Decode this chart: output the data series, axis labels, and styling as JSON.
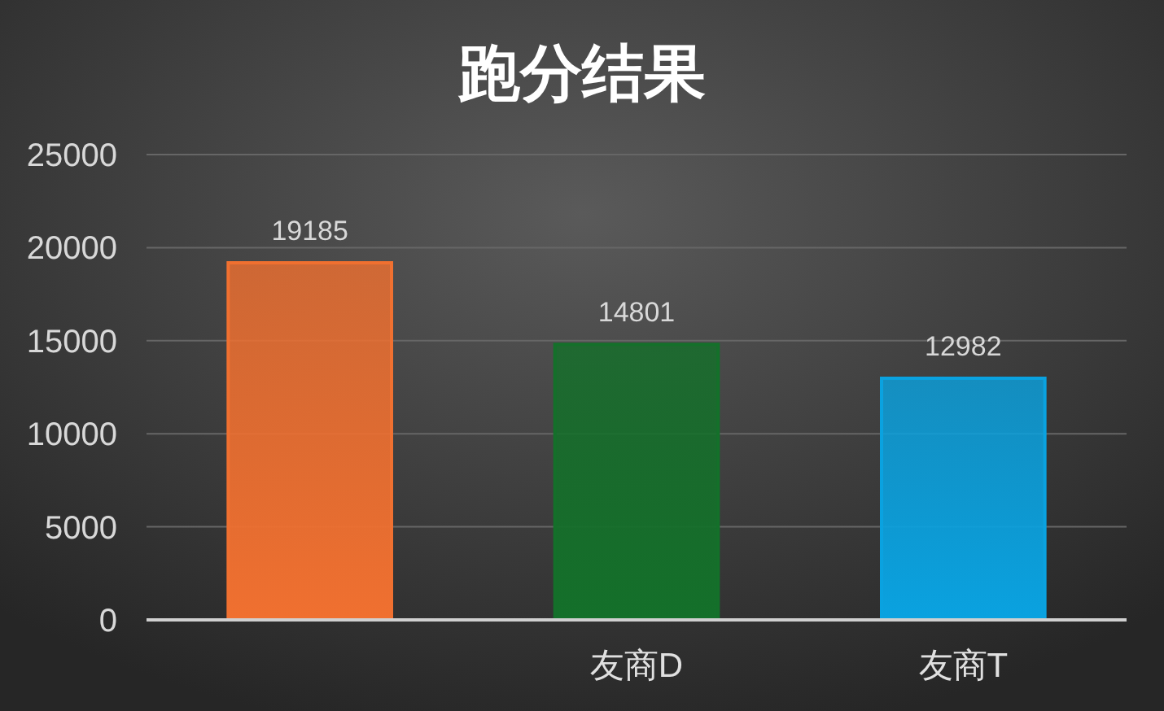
{
  "chart_data": {
    "type": "bar",
    "title": "跑分结果",
    "categories": [
      null,
      "友商D",
      "友商T"
    ],
    "values": [
      19185,
      14801,
      12982
    ],
    "colors": [
      "#f07030",
      "#14702a",
      "#0aa2e0"
    ],
    "ylim": [
      0,
      25000
    ],
    "yticks": [
      0,
      5000,
      10000,
      15000,
      20000,
      25000
    ],
    "grid": "y",
    "data_labels": true
  }
}
